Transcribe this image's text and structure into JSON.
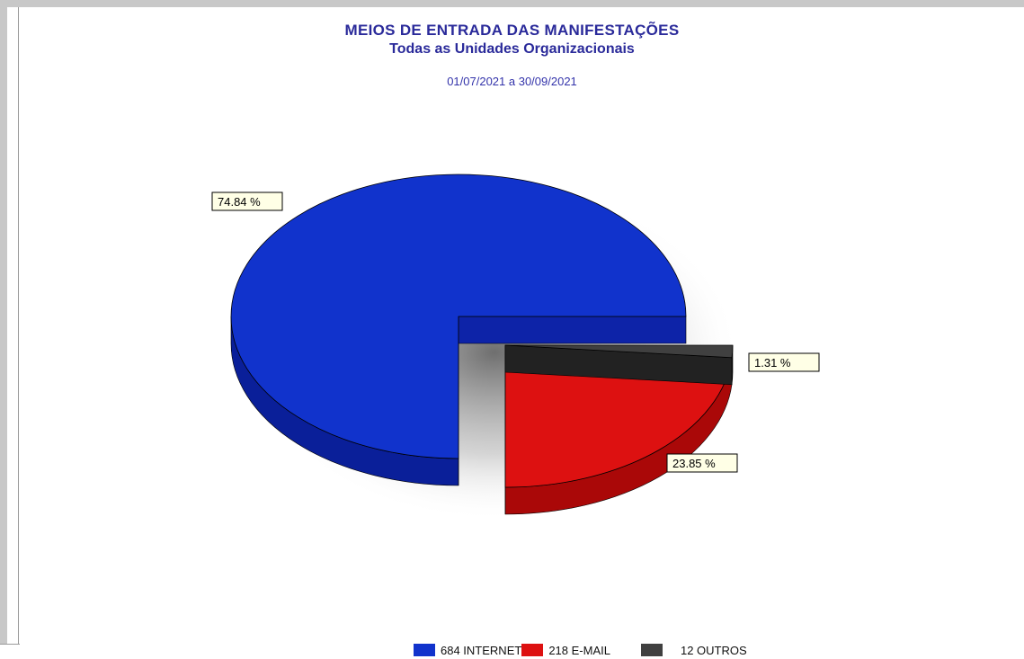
{
  "chart_data": {
    "type": "pie",
    "title": "MEIOS DE ENTRADA DAS MANIFESTAÇÕES",
    "subtitle": "Todas as Unidades Organizacionais",
    "period": "01/07/2021 a 30/09/2021",
    "slices": [
      {
        "label": "INTERNET",
        "count": 684,
        "percent": 74.84,
        "percent_label": "74.84 %",
        "legend_label": "684 INTERNET",
        "color": "#1133cc",
        "side_color": "#0a1f99",
        "exploded": false
      },
      {
        "label": "E-MAIL",
        "count": 218,
        "percent": 23.85,
        "percent_label": "23.85 %",
        "legend_label": "218 E-MAIL",
        "color": "#dd1111",
        "side_color": "#aa0808",
        "exploded": true
      },
      {
        "label": "OUTROS",
        "count": 12,
        "percent": 1.31,
        "percent_label": "1.31 %",
        "legend_label": "12 OUTROS",
        "color": "#404040",
        "side_color": "#222222",
        "exploded": true
      }
    ],
    "legend_position": "bottom"
  }
}
